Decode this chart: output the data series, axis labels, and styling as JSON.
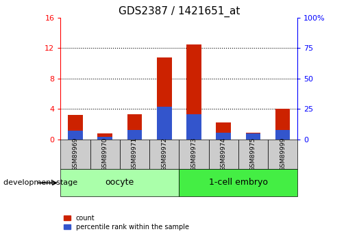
{
  "title": "GDS2387 / 1421651_at",
  "samples": [
    "GSM89969",
    "GSM89970",
    "GSM89971",
    "GSM89972",
    "GSM89973",
    "GSM89974",
    "GSM89975",
    "GSM89999"
  ],
  "count_values": [
    3.2,
    0.8,
    3.3,
    10.8,
    12.5,
    2.2,
    0.9,
    4.0
  ],
  "percentile_values": [
    7.0,
    2.0,
    7.5,
    27.0,
    20.5,
    5.5,
    5.0,
    7.5
  ],
  "groups": [
    {
      "label": "oocyte",
      "start": 0,
      "end": 4,
      "color": "#aaffaa"
    },
    {
      "label": "1-cell embryo",
      "start": 4,
      "end": 8,
      "color": "#44ee44"
    }
  ],
  "left_ylim": [
    0,
    16
  ],
  "right_ylim": [
    0,
    100
  ],
  "left_yticks": [
    0,
    4,
    8,
    12,
    16
  ],
  "right_yticks": [
    0,
    25,
    50,
    75,
    100
  ],
  "bar_color_red": "#cc2200",
  "bar_color_blue": "#3355cc",
  "bar_width": 0.5,
  "tick_label_area_color": "#cccccc",
  "group_label_fontsize": 9,
  "title_fontsize": 11,
  "legend_label_count": "count",
  "legend_label_percentile": "percentile rank within the sample",
  "development_stage_label": "development stage"
}
